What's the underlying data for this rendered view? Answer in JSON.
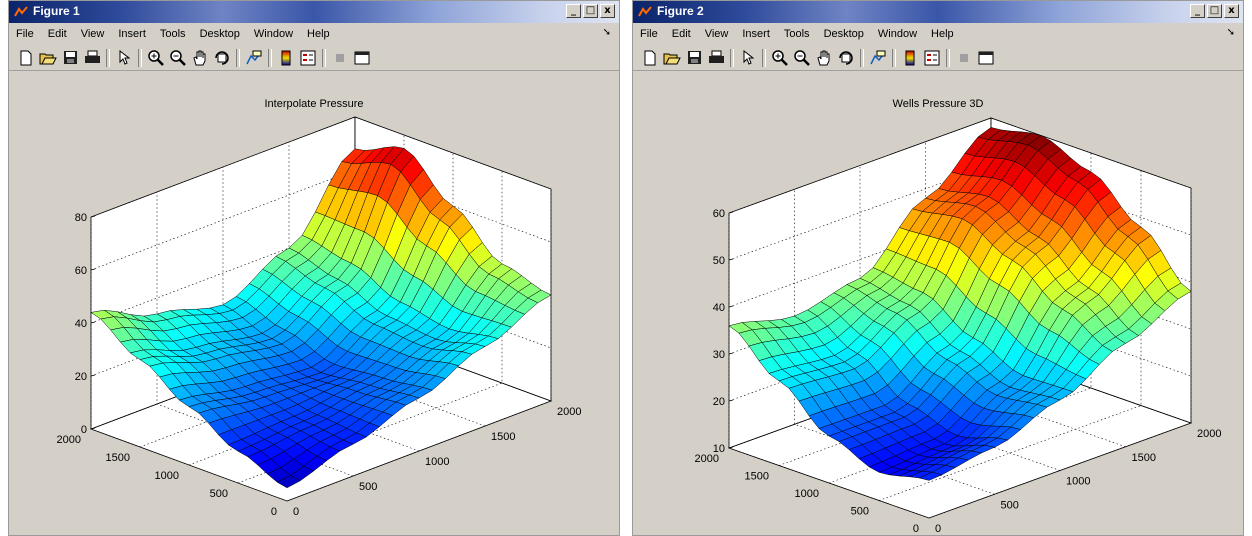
{
  "windows": [
    {
      "title": "Figure 1",
      "menu": [
        "File",
        "Edit",
        "View",
        "Insert",
        "Tools",
        "Desktop",
        "Window",
        "Help"
      ],
      "plot_title": "Interpolate Pressure",
      "toolbar_icons": [
        "new-figure-icon",
        "open-file-icon",
        "save-icon",
        "print-icon",
        "select-arrow-icon",
        "zoom-in-icon",
        "zoom-out-icon",
        "pan-hand-icon",
        "rotate-3d-icon",
        "data-cursor-icon",
        "colorbar-icon",
        "legend-icon",
        "hide-plot-tools-icon",
        "show-plot-tools-icon"
      ]
    },
    {
      "title": "Figure 2",
      "menu": [
        "File",
        "Edit",
        "View",
        "Insert",
        "Tools",
        "Desktop",
        "Window",
        "Help"
      ],
      "plot_title": "Wells Pressure 3D",
      "toolbar_icons": [
        "new-figure-icon",
        "open-file-icon",
        "save-icon",
        "print-icon",
        "select-arrow-icon",
        "zoom-in-icon",
        "zoom-out-icon",
        "pan-hand-icon",
        "rotate-3d-icon",
        "data-cursor-icon",
        "colorbar-icon",
        "legend-icon",
        "hide-plot-tools-icon",
        "show-plot-tools-icon"
      ]
    }
  ],
  "colors": {
    "window_bg": "#d4d0c8",
    "plot_bg": "#ffffff",
    "colormap": "jet",
    "title_bar_start": "#0a246a"
  },
  "chart_data": [
    {
      "type": "surface",
      "title": "Interpolate Pressure",
      "xlabel": "",
      "ylabel": "",
      "zlabel": "",
      "xlim": [
        0,
        2000
      ],
      "ylim": [
        0,
        2000
      ],
      "zlim": [
        0,
        80
      ],
      "x_ticks": [
        0,
        500,
        1000,
        1500,
        2000
      ],
      "y_ticks": [
        0,
        500,
        1000,
        1500,
        2000
      ],
      "z_ticks": [
        0,
        20,
        40,
        60,
        80
      ],
      "grid_step": 100,
      "z": [
        [
          5,
          12,
          20,
          30,
          40
        ],
        [
          12,
          14,
          18,
          26,
          45
        ],
        [
          22,
          18,
          16,
          28,
          60
        ],
        [
          33,
          26,
          22,
          35,
          75
        ],
        [
          44,
          34,
          28,
          40,
          68
        ]
      ]
    },
    {
      "type": "surface",
      "title": "Wells Pressure 3D",
      "xlabel": "",
      "ylabel": "",
      "zlabel": "",
      "xlim": [
        0,
        2000
      ],
      "ylim": [
        0,
        2000
      ],
      "zlim": [
        10,
        60
      ],
      "x_ticks": [
        0,
        500,
        1000,
        1500,
        2000
      ],
      "y_ticks": [
        0,
        500,
        1000,
        1500,
        2000
      ],
      "z_ticks": [
        10,
        20,
        30,
        40,
        50,
        60
      ],
      "grid_step": 100,
      "z": [
        [
          18,
          20,
          25,
          32,
          38
        ],
        [
          16,
          17,
          24,
          38,
          48
        ],
        [
          20,
          20,
          28,
          45,
          56
        ],
        [
          28,
          27,
          34,
          50,
          60
        ],
        [
          36,
          33,
          36,
          48,
          58
        ]
      ]
    }
  ]
}
